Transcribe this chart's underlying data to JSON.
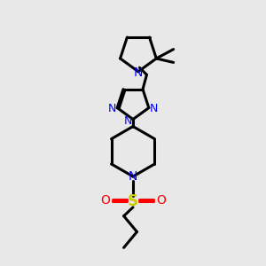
{
  "bg_color": "#e8e8e8",
  "bond_color": "#000000",
  "n_color": "#0000ff",
  "o_color": "#ff0000",
  "s_color": "#cccc00",
  "line_width": 2.2,
  "fig_width": 3.0,
  "fig_height": 3.0,
  "xlim": [
    0,
    10
  ],
  "ylim": [
    0,
    10
  ]
}
